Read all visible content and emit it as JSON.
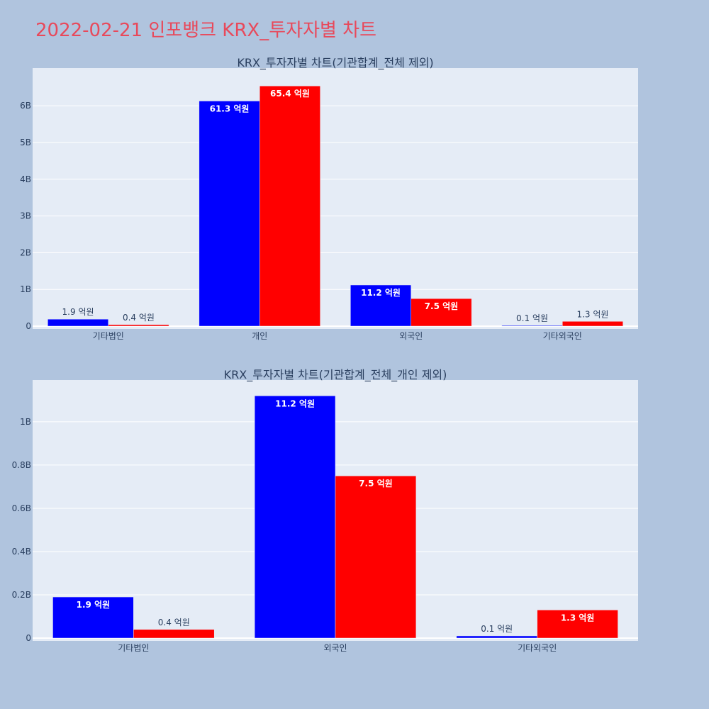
{
  "page": {
    "title": "2022-02-21 인포뱅크 KRX_투자자별 차트",
    "title_color": "#e8495b",
    "background": "#b0c4de",
    "plot_background": "#e5ecf6"
  },
  "chart_data": [
    {
      "type": "bar",
      "title": "KRX_투자자별 차트(기관합계_전체 제외)",
      "categories": [
        "기타법인",
        "개인",
        "외국인",
        "기타외국인"
      ],
      "series": [
        {
          "color": "#0000ff",
          "values": [
            190000000,
            6130000000,
            1120000000,
            10000000
          ],
          "labels": [
            "1.9 억원",
            "61.3 억원",
            "11.2 억원",
            "0.1 억원"
          ]
        },
        {
          "color": "#ff0000",
          "values": [
            40000000,
            6540000000,
            750000000,
            130000000
          ],
          "labels": [
            "0.4 억원",
            "65.4 억원",
            "7.5 억원",
            "1.3 억원"
          ]
        }
      ],
      "ylim": [
        0,
        6950000000
      ],
      "yticks": [
        0,
        1000000000,
        2000000000,
        3000000000,
        4000000000,
        5000000000,
        6000000000
      ],
      "ytick_labels": [
        "0",
        "1B",
        "2B",
        "3B",
        "4B",
        "5B",
        "6B"
      ],
      "xlabel": "",
      "ylabel": "",
      "grid": true
    },
    {
      "type": "bar",
      "title": "KRX_투자자별 차트(기관합계_전체_개인 제외)",
      "categories": [
        "기타법인",
        "외국인",
        "기타외국인"
      ],
      "series": [
        {
          "color": "#0000ff",
          "values": [
            190000000,
            1120000000,
            10000000
          ],
          "labels": [
            "1.9 억원",
            "11.2 억원",
            "0.1 억원"
          ]
        },
        {
          "color": "#ff0000",
          "values": [
            40000000,
            750000000,
            130000000
          ],
          "labels": [
            "0.4 억원",
            "7.5 억원",
            "1.3 억원"
          ]
        }
      ],
      "ylim": [
        0,
        1180000000
      ],
      "yticks": [
        0,
        200000000,
        400000000,
        600000000,
        800000000,
        1000000000
      ],
      "ytick_labels": [
        "0",
        "0.2B",
        "0.4B",
        "0.6B",
        "0.8B",
        "1B"
      ],
      "xlabel": "",
      "ylabel": "",
      "grid": true
    }
  ]
}
